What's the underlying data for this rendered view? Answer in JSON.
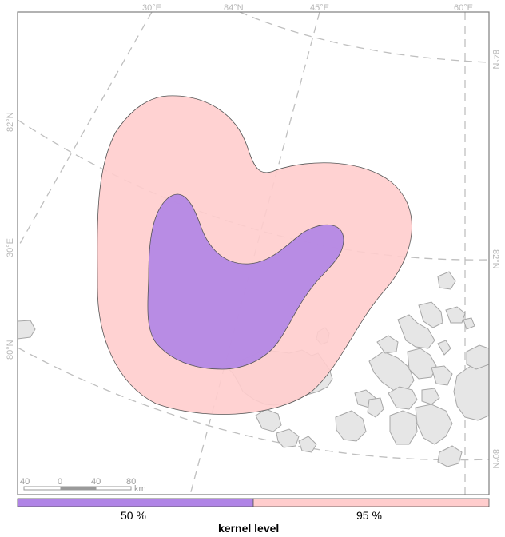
{
  "colors": {
    "kernel_50": "#b084e6",
    "kernel_95": "#ffcdcd",
    "land": "#e6e6e6",
    "graticule": "#bfbfbf"
  },
  "graticule": {
    "lon_top": [
      "30°E",
      "84°N",
      "45°E",
      "60°E"
    ],
    "lat_left": [
      "82°N",
      "30°E",
      "80°N"
    ],
    "lat_right": [
      "84°N",
      "82°N",
      "80°N"
    ]
  },
  "scale_bar": {
    "ticks": [
      "40",
      "0",
      "40",
      "80"
    ],
    "unit": "km"
  },
  "legend": {
    "title": "kernel level",
    "items": [
      {
        "label": "50 %",
        "color": "#b084e6"
      },
      {
        "label": "95 %",
        "color": "#ffcdcd"
      }
    ]
  }
}
